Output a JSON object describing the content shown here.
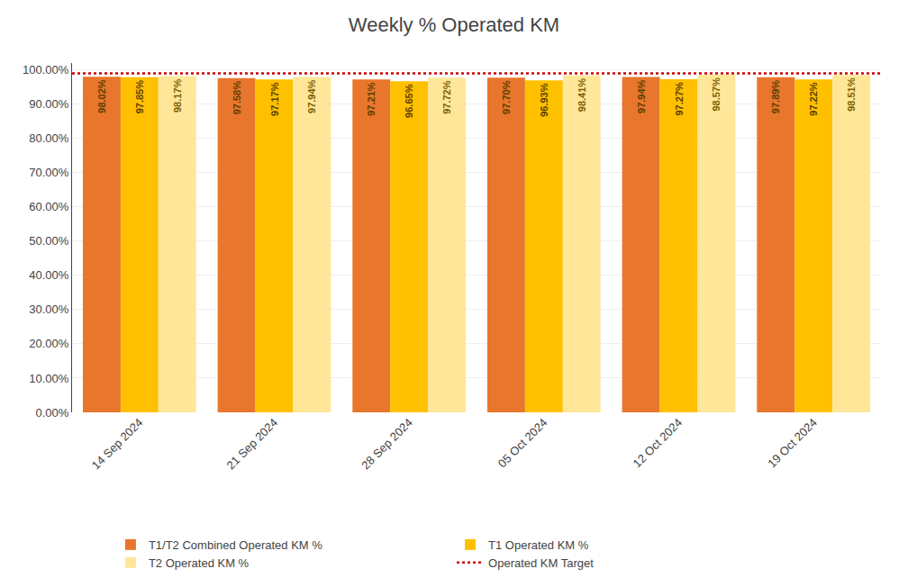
{
  "chart_data": {
    "type": "bar",
    "title": "Weekly % Operated KM",
    "categories": [
      "14 Sep 2024",
      "21 Sep 2024",
      "28 Sep 2024",
      "05 Oct 2024",
      "12 Oct 2024",
      "19 Oct 2024"
    ],
    "series": [
      {
        "name": "T1/T2 Combined Operated KM %",
        "color": "#E8762C",
        "values": [
          98.02,
          97.58,
          97.21,
          97.7,
          97.94,
          97.89
        ],
        "value_labels": [
          "98.02%",
          "97.58%",
          "97.21%",
          "97.70%",
          "97.94%",
          "97.89%"
        ]
      },
      {
        "name": "T1 Operated KM %",
        "color": "#FFC000",
        "values": [
          97.85,
          97.17,
          96.65,
          96.93,
          97.27,
          97.22
        ],
        "value_labels": [
          "97.85%",
          "97.17%",
          "96.65%",
          "96.93%",
          "97.27%",
          "97.22%"
        ]
      },
      {
        "name": "T2 Operated KM %",
        "color": "#FFE699",
        "values": [
          98.17,
          97.94,
          97.72,
          98.41,
          98.57,
          98.51
        ],
        "value_labels": [
          "98.17%",
          "97.94%",
          "97.72%",
          "98.41%",
          "98.57%",
          "98.51%"
        ]
      },
      {
        "name": "Operated KM Target",
        "type": "hline",
        "color": "#CC0000",
        "line_style": "dotted",
        "value": 99.0
      }
    ],
    "ylim": [
      0,
      102
    ],
    "yticks": [
      {
        "value": 0,
        "label": "0.00%"
      },
      {
        "value": 10,
        "label": "10.00%"
      },
      {
        "value": 20,
        "label": "20.00%"
      },
      {
        "value": 30,
        "label": "30.00%"
      },
      {
        "value": 40,
        "label": "40.00%"
      },
      {
        "value": 50,
        "label": "50.00%"
      },
      {
        "value": 60,
        "label": "60.00%"
      },
      {
        "value": 70,
        "label": "70.00%"
      },
      {
        "value": 80,
        "label": "80.00%"
      },
      {
        "value": 90,
        "label": "90.00%"
      },
      {
        "value": 100,
        "label": "100.00%"
      }
    ],
    "grid": true,
    "data_labels": true,
    "legend": "bottom"
  }
}
